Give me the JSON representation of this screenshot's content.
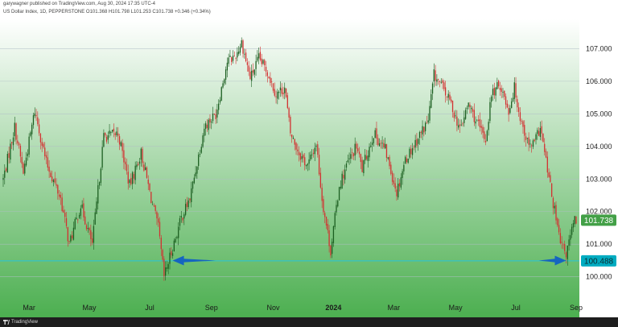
{
  "header": {
    "published": "garywagner published on TradingView.com, Aug 30, 2024 17:35 UTC-4",
    "symbol_line": "US Dollar Index, 1D, PEPPERSTONE  O101.368 H101.798 L101.253 C101.738 +0.346 (+0.34%)"
  },
  "footer": {
    "brand": "TradingView"
  },
  "colors": {
    "up": "#1b5e20",
    "down": "#d32f2f",
    "bg_top": "#ffffff",
    "bg_bottom": "#4caf50",
    "gridline": "#b0bec5",
    "support_line": "#26c6da",
    "arrow": "#1565c0",
    "last_price_tag": "#43a047",
    "support_tag": "#00acc1"
  },
  "chart_data": {
    "type": "candlestick",
    "title": "US Dollar Index, 1D, PEPPERSTONE",
    "ylim": [
      99.3,
      107.9
    ],
    "y_ticks": [
      "100.000",
      "101.000",
      "102.000",
      "103.000",
      "104.000",
      "105.000",
      "106.000",
      "107.000"
    ],
    "x_ticks": [
      "Mar",
      "May",
      "Jul",
      "Sep",
      "Nov",
      "2024",
      "Mar",
      "May",
      "Jul",
      "Sep"
    ],
    "x_tick_bars": [
      18,
      60,
      102,
      145,
      188,
      230,
      272,
      315,
      357,
      399
    ],
    "last_price": {
      "label": "101.738",
      "value": 101.738
    },
    "support": {
      "label": "100.488",
      "value": 100.488
    },
    "arrows": [
      {
        "from_bar": 148,
        "to_bar": 118,
        "value": 100.5
      },
      {
        "from_bar": 373,
        "to_bar": 392,
        "value": 100.5
      }
    ],
    "key_points": [
      [
        0,
        103.0
      ],
      [
        8,
        104.6
      ],
      [
        14,
        103.2
      ],
      [
        22,
        105.1
      ],
      [
        30,
        103.5
      ],
      [
        40,
        102.4
      ],
      [
        46,
        101.0
      ],
      [
        54,
        102.2
      ],
      [
        62,
        101.0
      ],
      [
        70,
        104.3
      ],
      [
        80,
        104.4
      ],
      [
        88,
        102.8
      ],
      [
        96,
        103.8
      ],
      [
        104,
        102.2
      ],
      [
        108,
        101.5
      ],
      [
        112,
        100.0
      ],
      [
        116,
        100.6
      ],
      [
        124,
        101.8
      ],
      [
        130,
        102.4
      ],
      [
        140,
        104.6
      ],
      [
        148,
        105.0
      ],
      [
        156,
        106.6
      ],
      [
        162,
        106.8
      ],
      [
        166,
        107.2
      ],
      [
        172,
        106.1
      ],
      [
        178,
        106.7
      ],
      [
        184,
        106.3
      ],
      [
        190,
        105.6
      ],
      [
        196,
        105.8
      ],
      [
        200,
        104.4
      ],
      [
        206,
        103.8
      ],
      [
        212,
        103.4
      ],
      [
        218,
        104.1
      ],
      [
        222,
        102.4
      ],
      [
        228,
        100.8
      ],
      [
        234,
        102.8
      ],
      [
        240,
        103.5
      ],
      [
        246,
        104.0
      ],
      [
        250,
        103.3
      ],
      [
        258,
        104.4
      ],
      [
        266,
        103.9
      ],
      [
        274,
        102.6
      ],
      [
        280,
        103.6
      ],
      [
        288,
        104.2
      ],
      [
        296,
        104.8
      ],
      [
        300,
        106.2
      ],
      [
        306,
        105.8
      ],
      [
        312,
        105.3
      ],
      [
        318,
        104.5
      ],
      [
        324,
        105.3
      ],
      [
        330,
        104.7
      ],
      [
        336,
        104.2
      ],
      [
        340,
        105.6
      ],
      [
        346,
        105.9
      ],
      [
        352,
        105.1
      ],
      [
        356,
        105.8
      ],
      [
        360,
        104.9
      ],
      [
        366,
        104.0
      ],
      [
        370,
        104.1
      ],
      [
        374,
        104.6
      ],
      [
        380,
        103.0
      ],
      [
        384,
        102.0
      ],
      [
        388,
        101.0
      ],
      [
        392,
        100.7
      ],
      [
        396,
        101.4
      ],
      [
        398,
        101.738
      ]
    ]
  }
}
